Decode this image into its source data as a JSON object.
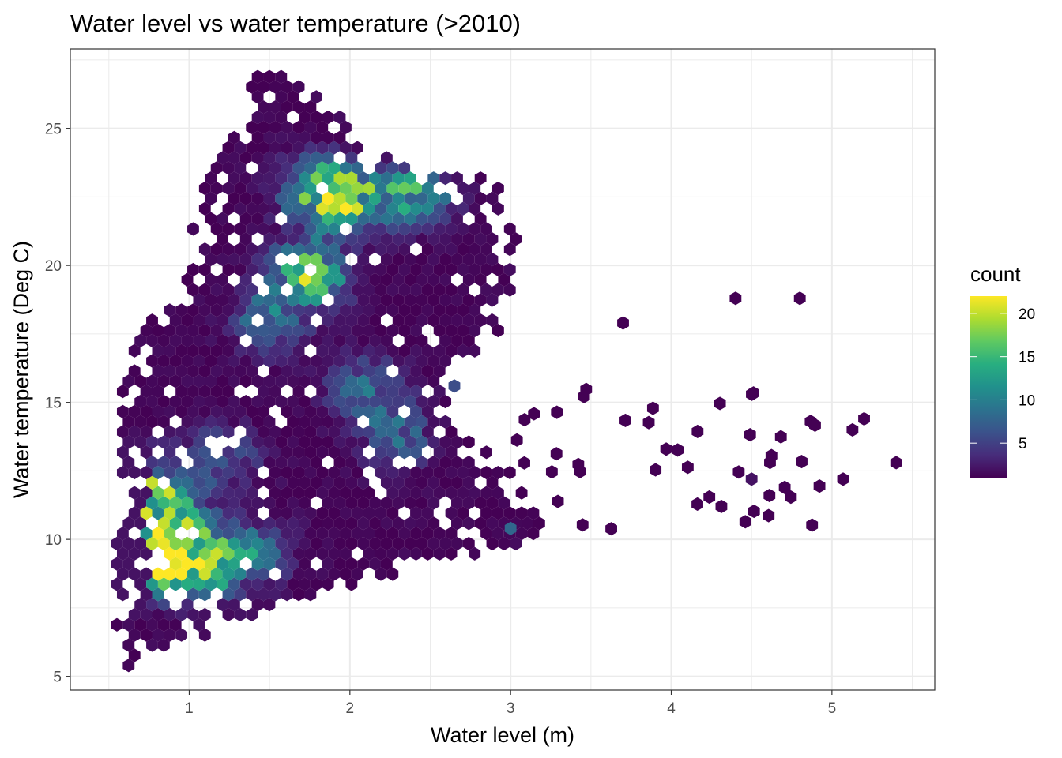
{
  "chart_data": {
    "type": "heatmap",
    "subtype": "hexbin",
    "title": "Water level vs water temperature (>2010)",
    "xlabel": "Water level (m)",
    "ylabel": "Water temperature (Deg C)",
    "xlim": [
      0.26,
      5.64
    ],
    "ylim": [
      4.5,
      27.9
    ],
    "x_ticks": [
      1,
      2,
      3,
      4,
      5
    ],
    "y_ticks": [
      5,
      10,
      15,
      20,
      25
    ],
    "grid": true,
    "theme": "bw",
    "colormap": "viridis",
    "count_range": [
      1,
      22
    ],
    "legend": {
      "title": "count",
      "position": "right",
      "breaks": [
        5,
        10,
        15,
        20
      ]
    },
    "hexbin_density": {
      "x_range": [
        0.55,
        5.45
      ],
      "y_range": [
        5.4,
        26.9
      ],
      "hex_width_x": 0.073,
      "dense_regions": [
        {
          "x": 0.75,
          "y": 9.3,
          "count": 21
        },
        {
          "x": 1.05,
          "y": 9.1,
          "count": 20
        },
        {
          "x": 0.7,
          "y": 11.8,
          "count": 16
        },
        {
          "x": 1.75,
          "y": 19.7,
          "count": 17
        },
        {
          "x": 2.0,
          "y": 22.5,
          "count": 14
        },
        {
          "x": 1.8,
          "y": 22.7,
          "count": 13
        },
        {
          "x": 2.4,
          "y": 22.6,
          "count": 12
        },
        {
          "x": 1.5,
          "y": 18.0,
          "count": 9
        },
        {
          "x": 2.1,
          "y": 15.5,
          "count": 8
        },
        {
          "x": 2.3,
          "y": 13.8,
          "count": 7
        },
        {
          "x": 1.2,
          "y": 13.0,
          "count": 7
        },
        {
          "x": 0.9,
          "y": 10.8,
          "count": 11
        },
        {
          "x": 1.4,
          "y": 9.5,
          "count": 8
        }
      ],
      "outlier_points": [
        {
          "x": 3.0,
          "y": 10.4,
          "count": 8
        },
        {
          "x": 2.65,
          "y": 15.6,
          "count": 6
        },
        {
          "x": 3.7,
          "y": 17.9,
          "count": 1
        },
        {
          "x": 4.4,
          "y": 18.8,
          "count": 1
        },
        {
          "x": 4.8,
          "y": 18.8,
          "count": 1
        },
        {
          "x": 5.2,
          "y": 14.4,
          "count": 1
        },
        {
          "x": 5.4,
          "y": 12.8,
          "count": 1
        },
        {
          "x": 4.5,
          "y": 12.2,
          "count": 2
        }
      ]
    }
  }
}
